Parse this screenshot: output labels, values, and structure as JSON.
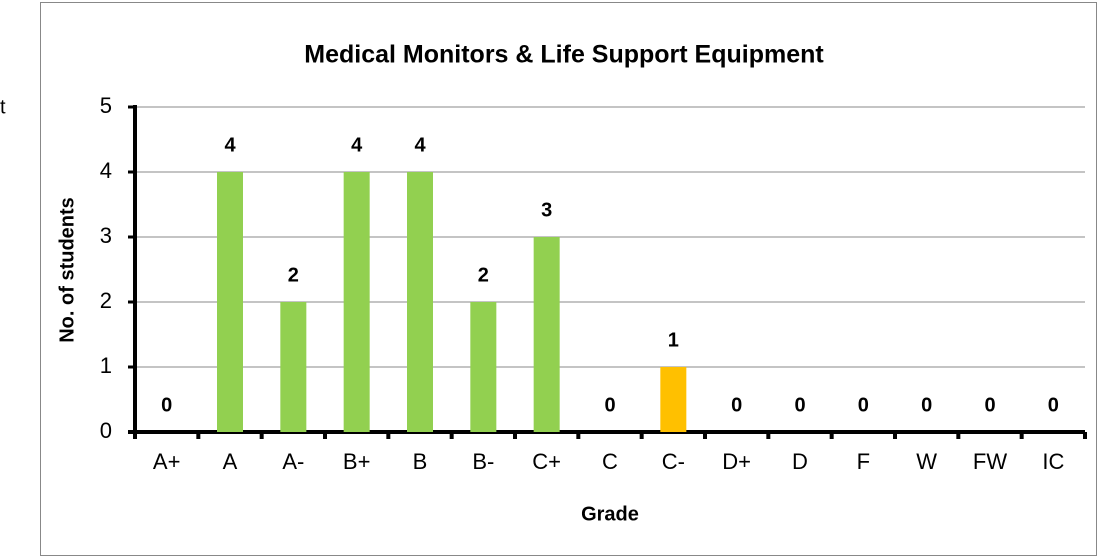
{
  "edge_text": "t",
  "chart_data": {
    "type": "bar",
    "title": "Medical Monitors & Life Support Equipment",
    "x_label": "Grade",
    "y_label": "No. of students",
    "categories": [
      "A+",
      "A",
      "A-",
      "B+",
      "B",
      "B-",
      "C+",
      "C",
      "C-",
      "D+",
      "D",
      "F",
      "W",
      "FW",
      "IC"
    ],
    "values": [
      0,
      4,
      2,
      4,
      4,
      2,
      3,
      0,
      1,
      0,
      0,
      0,
      0,
      0,
      0
    ],
    "colors": [
      "#92d050",
      "#92d050",
      "#92d050",
      "#92d050",
      "#92d050",
      "#92d050",
      "#92d050",
      "#92d050",
      "#ffc000",
      "#92d050",
      "#92d050",
      "#92d050",
      "#92d050",
      "#92d050",
      "#92d050"
    ],
    "ylim": [
      0,
      5
    ],
    "yticks": [
      0,
      1,
      2,
      3,
      4,
      5
    ],
    "grid": true
  }
}
